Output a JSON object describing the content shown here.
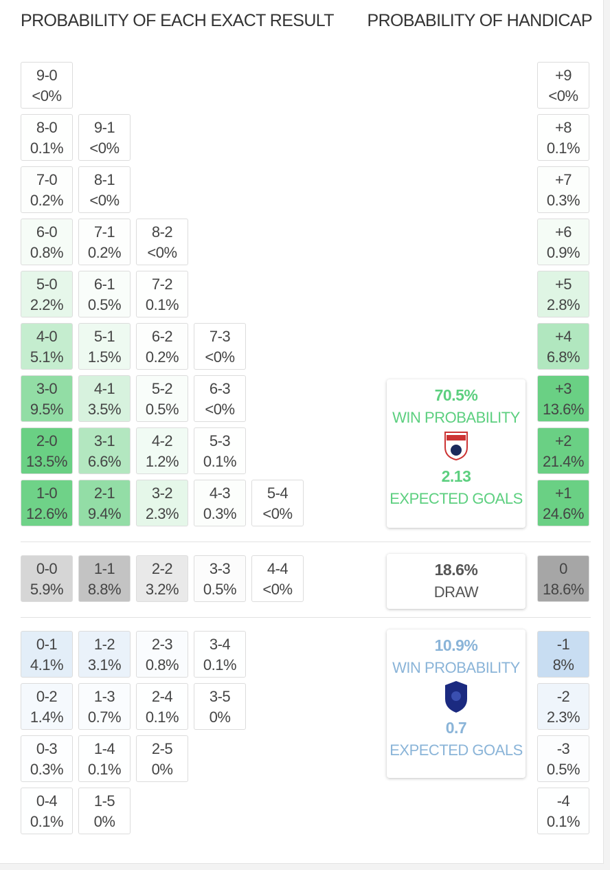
{
  "header": {
    "exact": "PROBABILITY OF EACH EXACT RESULT",
    "handicap": "PROBABILITY OF HANDICAP"
  },
  "exact": {
    "home": [
      [
        {
          "score": "9-0",
          "prob": "<0%"
        }
      ],
      [
        {
          "score": "8-0",
          "prob": "0.1%"
        },
        {
          "score": "9-1",
          "prob": "<0%"
        }
      ],
      [
        {
          "score": "7-0",
          "prob": "0.2%"
        },
        {
          "score": "8-1",
          "prob": "<0%"
        }
      ],
      [
        {
          "score": "6-0",
          "prob": "0.8%"
        },
        {
          "score": "7-1",
          "prob": "0.2%"
        },
        {
          "score": "8-2",
          "prob": "<0%"
        }
      ],
      [
        {
          "score": "5-0",
          "prob": "2.2%"
        },
        {
          "score": "6-1",
          "prob": "0.5%"
        },
        {
          "score": "7-2",
          "prob": "0.1%"
        }
      ],
      [
        {
          "score": "4-0",
          "prob": "5.1%"
        },
        {
          "score": "5-1",
          "prob": "1.5%"
        },
        {
          "score": "6-2",
          "prob": "0.2%"
        },
        {
          "score": "7-3",
          "prob": "<0%"
        }
      ],
      [
        {
          "score": "3-0",
          "prob": "9.5%"
        },
        {
          "score": "4-1",
          "prob": "3.5%"
        },
        {
          "score": "5-2",
          "prob": "0.5%"
        },
        {
          "score": "6-3",
          "prob": "<0%"
        }
      ],
      [
        {
          "score": "2-0",
          "prob": "13.5%"
        },
        {
          "score": "3-1",
          "prob": "6.6%"
        },
        {
          "score": "4-2",
          "prob": "1.2%"
        },
        {
          "score": "5-3",
          "prob": "0.1%"
        }
      ],
      [
        {
          "score": "1-0",
          "prob": "12.6%"
        },
        {
          "score": "2-1",
          "prob": "9.4%"
        },
        {
          "score": "3-2",
          "prob": "2.3%"
        },
        {
          "score": "4-3",
          "prob": "0.3%"
        },
        {
          "score": "5-4",
          "prob": "<0%"
        }
      ]
    ],
    "draw": [
      [
        {
          "score": "0-0",
          "prob": "5.9%"
        },
        {
          "score": "1-1",
          "prob": "8.8%"
        },
        {
          "score": "2-2",
          "prob": "3.2%"
        },
        {
          "score": "3-3",
          "prob": "0.5%"
        },
        {
          "score": "4-4",
          "prob": "<0%"
        }
      ]
    ],
    "away": [
      [
        {
          "score": "0-1",
          "prob": "4.1%"
        },
        {
          "score": "1-2",
          "prob": "3.1%"
        },
        {
          "score": "2-3",
          "prob": "0.8%"
        },
        {
          "score": "3-4",
          "prob": "0.1%"
        }
      ],
      [
        {
          "score": "0-2",
          "prob": "1.4%"
        },
        {
          "score": "1-3",
          "prob": "0.7%"
        },
        {
          "score": "2-4",
          "prob": "0.1%"
        },
        {
          "score": "3-5",
          "prob": "0%"
        }
      ],
      [
        {
          "score": "0-3",
          "prob": "0.3%"
        },
        {
          "score": "1-4",
          "prob": "0.1%"
        },
        {
          "score": "2-5",
          "prob": "0%"
        }
      ],
      [
        {
          "score": "0-4",
          "prob": "0.1%"
        },
        {
          "score": "1-5",
          "prob": "0%"
        }
      ]
    ]
  },
  "handicap": {
    "home": [
      {
        "line": "+9",
        "prob": "<0%"
      },
      {
        "line": "+8",
        "prob": "0.1%"
      },
      {
        "line": "+7",
        "prob": "0.3%"
      },
      {
        "line": "+6",
        "prob": "0.9%"
      },
      {
        "line": "+5",
        "prob": "2.8%"
      },
      {
        "line": "+4",
        "prob": "6.8%"
      },
      {
        "line": "+3",
        "prob": "13.6%"
      },
      {
        "line": "+2",
        "prob": "21.4%"
      },
      {
        "line": "+1",
        "prob": "24.6%"
      }
    ],
    "draw": [
      {
        "line": "0",
        "prob": "18.6%"
      }
    ],
    "away": [
      {
        "line": "-1",
        "prob": "8%"
      },
      {
        "line": "-2",
        "prob": "2.3%"
      },
      {
        "line": "-3",
        "prob": "0.5%"
      },
      {
        "line": "-4",
        "prob": "0.1%"
      }
    ]
  },
  "summary": {
    "home": {
      "win": "70.5%",
      "win_label": "WIN PROBABILITY",
      "xg": "2.13",
      "xg_label": "EXPECTED GOALS"
    },
    "draw": {
      "draw": "18.6%",
      "draw_label": "DRAW"
    },
    "away": {
      "win": "10.9%",
      "win_label": "WIN PROBABILITY",
      "xg": "0.7",
      "xg_label": "EXPECTED GOALS"
    }
  }
}
